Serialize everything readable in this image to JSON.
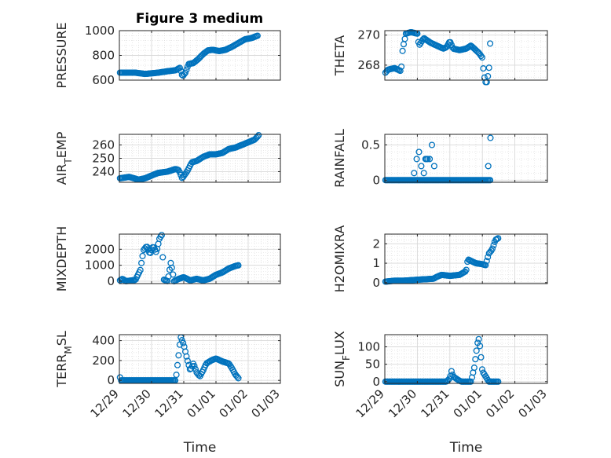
{
  "figure_title": "Figure 3 medium",
  "colors": {
    "marker": "#0072BD",
    "axis": "#262626",
    "grid": "#d9d9d9"
  },
  "chart_data": [
    {
      "type": "scatter",
      "ylabel": "PRESSURE",
      "ylim": [
        600,
        1000
      ],
      "yticks": [
        600,
        800,
        1000
      ],
      "yticklabels": [
        "600",
        "800",
        "1000"
      ],
      "xlim": [
        0,
        5
      ],
      "xticks": [
        0,
        1,
        2,
        3,
        4,
        5
      ],
      "xticklabels": [
        "12/29",
        "12/30",
        "12/31",
        "01/01",
        "01/02",
        "01/03"
      ],
      "show_xticklabels": false,
      "xlabel": "",
      "series": [
        {
          "name": "PRESSURE",
          "knots": [
            [
              0.02,
              660
            ],
            [
              0.5,
              660
            ],
            [
              0.8,
              650
            ],
            [
              1.2,
              660
            ],
            [
              1.5,
              672
            ],
            [
              1.75,
              680
            ],
            [
              1.88,
              700
            ],
            [
              1.96,
              630
            ],
            [
              2.05,
              660
            ],
            [
              2.15,
              730
            ],
            [
              2.3,
              738
            ],
            [
              2.45,
              770
            ],
            [
              2.6,
              810
            ],
            [
              2.75,
              840
            ],
            [
              2.9,
              845
            ],
            [
              3.1,
              835
            ],
            [
              3.3,
              845
            ],
            [
              3.5,
              870
            ],
            [
              3.7,
              900
            ],
            [
              3.9,
              930
            ],
            [
              4.1,
              940
            ],
            [
              4.3,
              960
            ]
          ]
        }
      ]
    },
    {
      "type": "scatter",
      "ylabel": "THETA",
      "ylim": [
        267,
        270.3
      ],
      "yticks": [
        268,
        270
      ],
      "yticklabels": [
        "268",
        "270"
      ],
      "xlim": [
        0,
        5
      ],
      "xticks": [
        0,
        1,
        2,
        3,
        4,
        5
      ],
      "xticklabels": [
        "12/29",
        "12/30",
        "12/31",
        "01/01",
        "01/02",
        "01/03"
      ],
      "show_xticklabels": false,
      "xlabel": "",
      "series": [
        {
          "name": "THETA",
          "knots": [
            [
              0.02,
              267.5
            ],
            [
              0.1,
              267.7
            ],
            [
              0.3,
              267.8
            ],
            [
              0.5,
              267.6
            ],
            [
              0.55,
              269.1
            ],
            [
              0.65,
              270.1
            ],
            [
              0.8,
              270.2
            ],
            [
              1.0,
              270.1
            ],
            [
              1.05,
              269.3
            ],
            [
              1.2,
              269.8
            ],
            [
              1.4,
              269.5
            ],
            [
              1.6,
              269.3
            ],
            [
              1.8,
              269.1
            ],
            [
              1.9,
              269.2
            ],
            [
              2.0,
              269.6
            ],
            [
              2.1,
              269.1
            ],
            [
              2.3,
              269.0
            ],
            [
              2.5,
              269.1
            ],
            [
              2.65,
              269.3
            ],
            [
              2.9,
              268.8
            ],
            [
              3.0,
              268.5
            ],
            [
              3.05,
              267.3
            ],
            [
              3.12,
              266.7
            ],
            [
              3.2,
              267.6
            ],
            [
              3.25,
              269.9
            ]
          ]
        }
      ]
    },
    {
      "type": "scatter",
      "ylabel": "AIR_TEMP",
      "ylim": [
        232,
        268
      ],
      "yticks": [
        240,
        250,
        260
      ],
      "yticklabels": [
        "240",
        "250",
        "260"
      ],
      "xlim": [
        0,
        5
      ],
      "xticks": [
        0,
        1,
        2,
        3,
        4,
        5
      ],
      "xticklabels": [
        "12/29",
        "12/30",
        "12/31",
        "01/01",
        "01/02",
        "01/03"
      ],
      "show_xticklabels": false,
      "xlabel": "",
      "series": [
        {
          "name": "AIR_TEMP",
          "knots": [
            [
              0.02,
              235
            ],
            [
              0.3,
              236
            ],
            [
              0.6,
              234
            ],
            [
              0.8,
              235
            ],
            [
              1.0,
              237
            ],
            [
              1.2,
              239
            ],
            [
              1.5,
              240
            ],
            [
              1.75,
              242
            ],
            [
              1.85,
              241
            ],
            [
              1.95,
              235
            ],
            [
              2.1,
              240
            ],
            [
              2.25,
              247
            ],
            [
              2.4,
              248
            ],
            [
              2.6,
              251
            ],
            [
              2.8,
              253
            ],
            [
              3.0,
              253
            ],
            [
              3.2,
              254
            ],
            [
              3.4,
              257
            ],
            [
              3.6,
              258
            ],
            [
              3.8,
              260
            ],
            [
              4.0,
              262
            ],
            [
              4.2,
              264
            ],
            [
              4.35,
              268
            ]
          ]
        }
      ]
    },
    {
      "type": "scatter",
      "ylabel": "RAINFALL",
      "ylim": [
        -0.03,
        0.65
      ],
      "yticks": [
        0,
        0.5
      ],
      "yticklabels": [
        "0",
        "0.5"
      ],
      "xlim": [
        0,
        5
      ],
      "xticks": [
        0,
        1,
        2,
        3,
        4,
        5
      ],
      "xticklabels": [
        "12/29",
        "12/30",
        "12/31",
        "01/01",
        "01/02",
        "01/03"
      ],
      "show_xticklabels": false,
      "xlabel": "",
      "series": [
        {
          "name": "RAINFALL",
          "baseline_range": [
            0.02,
            3.25
          ],
          "baseline": 0,
          "points": [
            [
              0.9,
              0.1
            ],
            [
              0.98,
              0.3
            ],
            [
              1.05,
              0.4
            ],
            [
              1.12,
              0.2
            ],
            [
              1.2,
              0.1
            ],
            [
              1.25,
              0.3
            ],
            [
              1.28,
              0.3
            ],
            [
              1.32,
              0.3
            ],
            [
              1.38,
              0.3
            ],
            [
              1.45,
              0.5
            ],
            [
              1.52,
              0.2
            ],
            [
              3.18,
              0.2
            ],
            [
              3.25,
              0.6
            ]
          ]
        }
      ]
    },
    {
      "type": "scatter",
      "ylabel": "MIXDEPTH",
      "ylim": [
        -150,
        2950
      ],
      "yticks": [
        0,
        1000,
        2000
      ],
      "yticklabels": [
        "0",
        "1000",
        "2000"
      ],
      "xlim": [
        0,
        5
      ],
      "xticks": [
        0,
        1,
        2,
        3,
        4,
        5
      ],
      "xticklabels": [
        "12/29",
        "12/30",
        "12/31",
        "01/01",
        "01/02",
        "01/03"
      ],
      "show_xticklabels": false,
      "xlabel": "",
      "series": [
        {
          "name": "MIXDEPTH",
          "knots": [
            [
              0.02,
              50
            ],
            [
              0.1,
              150
            ],
            [
              0.2,
              0
            ],
            [
              0.5,
              80
            ],
            [
              0.65,
              700
            ],
            [
              0.75,
              1950
            ],
            [
              0.85,
              2200
            ],
            [
              0.95,
              1700
            ],
            [
              1.05,
              2200
            ],
            [
              1.15,
              1800
            ],
            [
              1.25,
              2700
            ],
            [
              1.32,
              2900
            ],
            [
              1.38,
              100
            ],
            [
              1.5,
              0
            ],
            [
              1.6,
              1200
            ],
            [
              1.7,
              0
            ],
            [
              1.85,
              150
            ],
            [
              2.0,
              250
            ],
            [
              2.2,
              50
            ],
            [
              2.4,
              150
            ],
            [
              2.6,
              50
            ],
            [
              2.8,
              150
            ],
            [
              3.0,
              400
            ],
            [
              3.2,
              550
            ],
            [
              3.4,
              800
            ],
            [
              3.6,
              950
            ],
            [
              3.7,
              1000
            ]
          ]
        }
      ]
    },
    {
      "type": "scatter",
      "ylabel": "H2OMIXRA",
      "ylim": [
        -0.05,
        2.5
      ],
      "yticks": [
        0,
        1,
        2
      ],
      "yticklabels": [
        "0",
        "1",
        "2"
      ],
      "xlim": [
        0,
        5
      ],
      "xticks": [
        0,
        1,
        2,
        3,
        4,
        5
      ],
      "xticklabels": [
        "12/29",
        "12/30",
        "12/31",
        "01/01",
        "01/02",
        "01/03"
      ],
      "show_xticklabels": false,
      "xlabel": "",
      "series": [
        {
          "name": "H2OMIXRA",
          "knots": [
            [
              0.02,
              0.05
            ],
            [
              0.3,
              0.1
            ],
            [
              0.6,
              0.1
            ],
            [
              1.0,
              0.15
            ],
            [
              1.5,
              0.2
            ],
            [
              1.6,
              0.3
            ],
            [
              1.75,
              0.4
            ],
            [
              2.0,
              0.35
            ],
            [
              2.3,
              0.4
            ],
            [
              2.5,
              0.6
            ],
            [
              2.55,
              1.2
            ],
            [
              2.8,
              1.0
            ],
            [
              3.0,
              0.95
            ],
            [
              3.1,
              0.9
            ],
            [
              3.2,
              1.5
            ],
            [
              3.3,
              1.7
            ],
            [
              3.4,
              2.2
            ],
            [
              3.5,
              2.3
            ]
          ]
        }
      ]
    },
    {
      "type": "scatter",
      "ylabel": "TERR_MSL",
      "ylim": [
        -30,
        460
      ],
      "yticks": [
        0,
        200,
        400
      ],
      "yticklabels": [
        "0",
        "200",
        "400"
      ],
      "xlim": [
        0,
        5
      ],
      "xticks": [
        0,
        1,
        2,
        3,
        4,
        5
      ],
      "xticklabels": [
        "12/29",
        "12/30",
        "12/31",
        "01/01",
        "01/02",
        "01/03"
      ],
      "show_xticklabels": true,
      "xlabel": "Time",
      "series": [
        {
          "name": "TERR_MSL",
          "knots": [
            [
              0.02,
              30
            ],
            [
              0.05,
              0
            ],
            [
              1.75,
              0
            ],
            [
              1.85,
              280
            ],
            [
              1.9,
              440
            ],
            [
              2.0,
              360
            ],
            [
              2.1,
              220
            ],
            [
              2.2,
              100
            ],
            [
              2.3,
              170
            ],
            [
              2.4,
              80
            ],
            [
              2.5,
              40
            ],
            [
              2.6,
              100
            ],
            [
              2.7,
              170
            ],
            [
              2.85,
              200
            ],
            [
              3.0,
              220
            ],
            [
              3.2,
              190
            ],
            [
              3.4,
              170
            ],
            [
              3.5,
              120
            ],
            [
              3.6,
              60
            ],
            [
              3.7,
              20
            ]
          ]
        }
      ]
    },
    {
      "type": "scatter",
      "ylabel": "SUN_FLUX",
      "ylim": [
        -5,
        135
      ],
      "yticks": [
        0,
        50,
        100
      ],
      "yticklabels": [
        "0",
        "50",
        "100"
      ],
      "xlim": [
        0,
        5
      ],
      "xticks": [
        0,
        1,
        2,
        3,
        4,
        5
      ],
      "xticklabels": [
        "12/29",
        "12/30",
        "12/31",
        "01/01",
        "01/02",
        "01/03"
      ],
      "show_xticklabels": true,
      "xlabel": "Time",
      "series": [
        {
          "name": "SUN_FLUX",
          "knots": [
            [
              0.02,
              0
            ],
            [
              1.9,
              0
            ],
            [
              2.0,
              10
            ],
            [
              2.05,
              30
            ],
            [
              2.1,
              15
            ],
            [
              2.25,
              5
            ],
            [
              2.35,
              0
            ],
            [
              2.65,
              0
            ],
            [
              2.75,
              40
            ],
            [
              2.85,
              110
            ],
            [
              2.9,
              125
            ],
            [
              2.95,
              80
            ],
            [
              3.0,
              30
            ],
            [
              3.1,
              15
            ],
            [
              3.2,
              0
            ],
            [
              3.5,
              0
            ]
          ]
        }
      ]
    }
  ]
}
